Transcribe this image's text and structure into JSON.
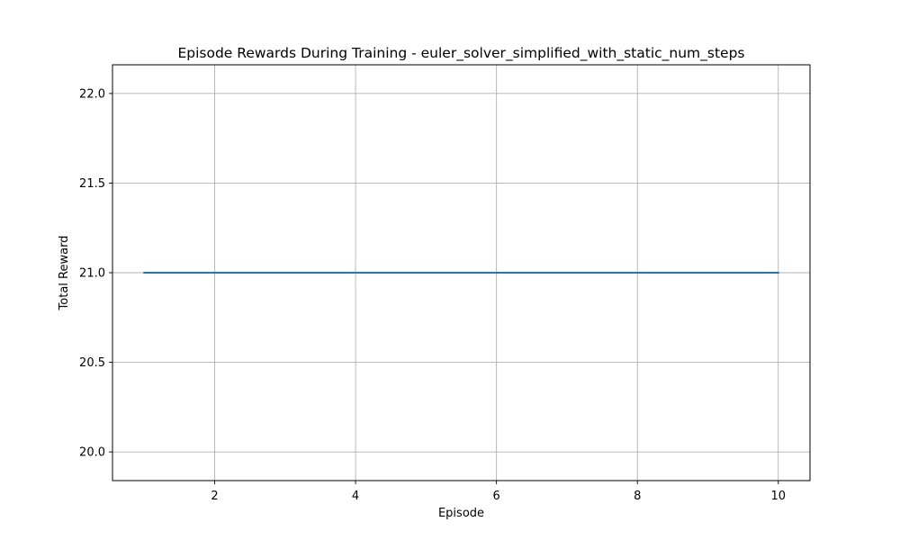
{
  "chart_data": {
    "type": "line",
    "title": "Episode Rewards During Training - euler_solver_simplified_with_static_num_steps",
    "xlabel": "Episode",
    "ylabel": "Total Reward",
    "x": [
      1,
      2,
      3,
      4,
      5,
      6,
      7,
      8,
      9,
      10
    ],
    "series": [
      {
        "values": [
          21,
          21,
          21,
          21,
          21,
          21,
          21,
          21,
          21,
          21
        ]
      }
    ],
    "xlim": [
      0.55,
      10.45
    ],
    "ylim": [
      19.84,
      22.16
    ],
    "xticks": [
      2,
      4,
      6,
      8,
      10
    ],
    "yticks": [
      20.0,
      20.5,
      21.0,
      21.5,
      22.0
    ],
    "xtick_labels": [
      "2",
      "4",
      "6",
      "8",
      "10"
    ],
    "ytick_labels": [
      "20.0",
      "20.5",
      "21.0",
      "21.5",
      "22.0"
    ],
    "grid": true,
    "line_color": "#1f77b4",
    "grid_color": "#b0b0b0"
  }
}
